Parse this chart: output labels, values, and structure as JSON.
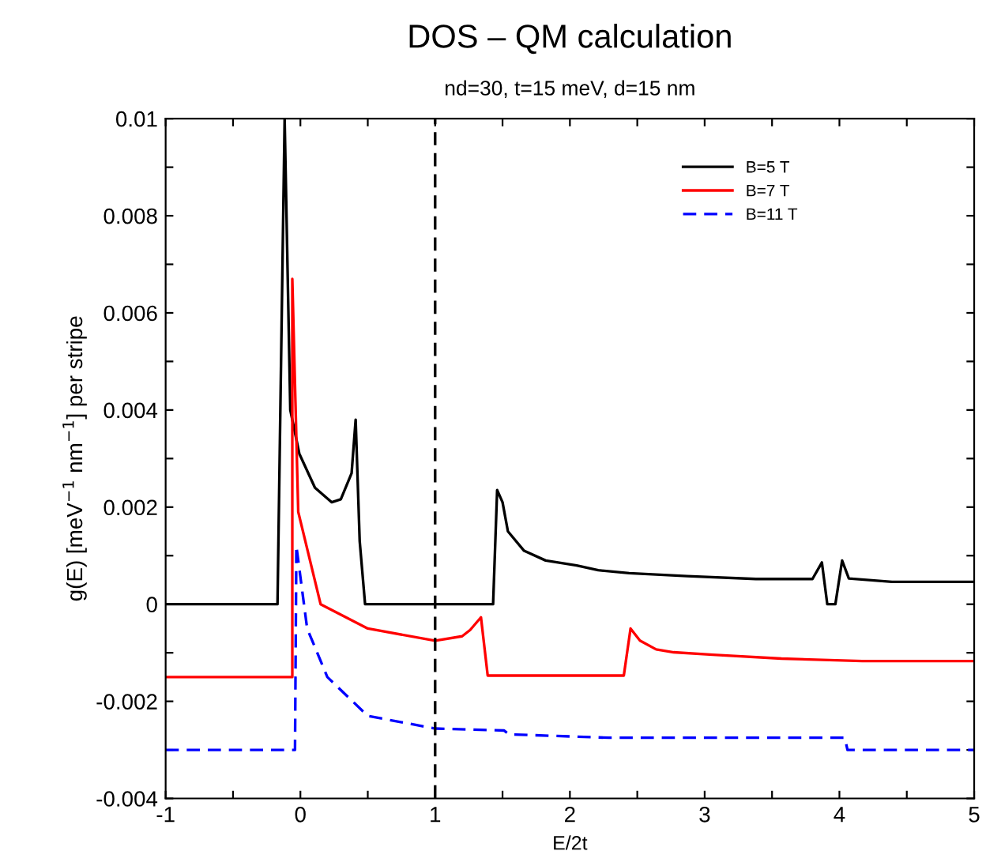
{
  "chart_data": {
    "type": "line",
    "title": "DOS – QM calculation",
    "subtitle": "nd=30, t=15 meV, d=15 nm",
    "xlabel": "E/2t",
    "ylabel": "g(E) [meV$^{−1}$ nm$^{−1}$] per stripe",
    "xlim": [
      -1,
      5
    ],
    "ylim": [
      -0.004,
      0.01
    ],
    "xticks": [
      -1,
      {
        "value": -0.5,
        "label": null
      },
      0,
      {
        "value": 0.5,
        "label": null
      },
      1,
      {
        "value": 1.5,
        "label": null
      },
      2,
      {
        "value": 2.5,
        "label": null
      },
      3,
      {
        "value": 3.5,
        "label": null
      },
      4,
      {
        "value": 4.5,
        "label": null
      },
      5
    ],
    "yticks": [
      -0.004,
      {
        "value": -0.003,
        "label": null
      },
      -0.002,
      {
        "value": -0.001,
        "label": null
      },
      0,
      {
        "value": 0.001,
        "label": null
      },
      0.002,
      {
        "value": 0.003,
        "label": null
      },
      0.004,
      {
        "value": 0.005,
        "label": null
      },
      0.006,
      {
        "value": 0.007,
        "label": null
      },
      0.008,
      {
        "value": 0.009,
        "label": null
      },
      0.01
    ],
    "grid": false,
    "legend": "top right",
    "marker": "none",
    "ref_lines": [
      {
        "axis": "x",
        "value": 1,
        "color": "#000000",
        "line_style": "dashed"
      }
    ],
    "series": [
      {
        "name": "B=5 T",
        "color": "#000000",
        "line_style": "solid",
        "x": [
          -1,
          -0.17,
          -0.117,
          -0.075,
          -0.008,
          0.108,
          0.233,
          0.3,
          0.38,
          0.41,
          0.44,
          0.48,
          1.43,
          1.46,
          1.5,
          1.54,
          1.66,
          1.82,
          2.05,
          2.21,
          2.44,
          2.87,
          3.38,
          3.8,
          3.87,
          3.91,
          3.97,
          4.02,
          4.07,
          4.39,
          5
        ],
        "values": [
          0,
          0,
          0.01,
          0.004,
          0.0031,
          0.0024,
          0.0021,
          0.00216,
          0.0027,
          0.0038,
          0.0013,
          0,
          0,
          0.00235,
          0.0021,
          0.0015,
          0.0011,
          0.0009,
          0.0008,
          0.0007,
          0.00064,
          0.00058,
          0.00052,
          0.00052,
          0.00086,
          0,
          0,
          0.0009,
          0.00053,
          0.00046,
          0.00046
        ]
      },
      {
        "name": "B=7 T",
        "color": "#ff0000",
        "line_style": "solid",
        "x": [
          -1,
          -0.06,
          -0.06,
          -0.016,
          0.15,
          0.5,
          1.0,
          1.2,
          1.26,
          1.34,
          1.39,
          2.4,
          2.45,
          2.52,
          2.64,
          2.77,
          3.06,
          3.57,
          4.17,
          5
        ],
        "values": [
          -0.0015,
          -0.0015,
          0.0067,
          0.0019,
          0,
          -0.0005,
          -0.00075,
          -0.00066,
          -0.00053,
          -0.00027,
          -0.00147,
          -0.00147,
          -0.0005,
          -0.00075,
          -0.00093,
          -0.00099,
          -0.00104,
          -0.00112,
          -0.00117,
          -0.00117
        ]
      },
      {
        "name": "B=11 T",
        "color": "#0000ff",
        "line_style": "dashed",
        "x": [
          -1,
          -0.04,
          -0.03,
          0.05,
          0.2,
          0.5,
          1.0,
          1.51,
          1.55,
          2.29,
          4.04,
          4.06,
          5
        ],
        "values": [
          -0.003,
          -0.003,
          0.0012,
          -0.0005,
          -0.0015,
          -0.0023,
          -0.00256,
          -0.0026,
          -0.00268,
          -0.00275,
          -0.00275,
          -0.003,
          -0.003
        ]
      }
    ]
  }
}
